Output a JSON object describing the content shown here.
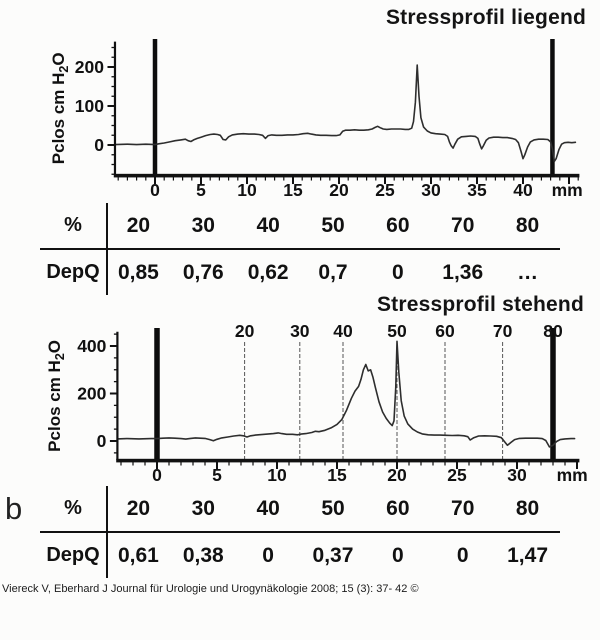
{
  "panel_label": "b",
  "citation": "Viereck V, Eberhard J Journal für Urologie und Urogynäkologie 2008; 15 (3): 37- 42 ©",
  "colors": {
    "ink": "#111111",
    "trace": "#2e2e2e",
    "marker_bar": "#0d0d0d",
    "gridline": "#555555"
  },
  "chart_data": [
    {
      "id": "liegend",
      "type": "line",
      "title": "Stressprofil liegend",
      "ylabel": "Pclos cm H2O",
      "ylabel_rich": {
        "pre": "Pclos cm H",
        "sub": "2",
        "post": "O"
      },
      "x_unit": "mm",
      "xlim": [
        -4.35,
        46
      ],
      "ylim": [
        -77,
        265
      ],
      "x_ticks": [
        0,
        5,
        10,
        15,
        20,
        25,
        30,
        35,
        40
      ],
      "x_minor_step": 1,
      "y_ticks": [
        0,
        100,
        200
      ],
      "y_minor_step": 25,
      "unit_label_mm": 44.8,
      "marker_bars_mm": [
        0,
        43.2
      ],
      "grid": false,
      "points": [
        [
          -4.35,
          1
        ],
        [
          -3,
          2
        ],
        [
          -2,
          1
        ],
        [
          -1,
          2
        ],
        [
          0,
          1
        ],
        [
          0.4,
          3
        ],
        [
          1,
          5
        ],
        [
          1.6,
          8
        ],
        [
          2.2,
          11
        ],
        [
          2.8,
          13
        ],
        [
          3.3,
          15
        ],
        [
          3.6,
          11
        ],
        [
          3.9,
          9
        ],
        [
          4.2,
          13
        ],
        [
          4.6,
          17
        ],
        [
          5,
          20
        ],
        [
          5.5,
          24
        ],
        [
          6,
          27
        ],
        [
          6.4,
          28
        ],
        [
          6.8,
          27
        ],
        [
          7.1,
          25
        ],
        [
          7.4,
          14
        ],
        [
          7.7,
          13
        ],
        [
          8,
          21
        ],
        [
          8.4,
          26
        ],
        [
          9,
          28
        ],
        [
          9.6,
          29
        ],
        [
          10.2,
          28
        ],
        [
          10.8,
          28
        ],
        [
          11.3,
          27
        ],
        [
          11.7,
          25
        ],
        [
          12,
          17
        ],
        [
          12.3,
          24
        ],
        [
          12.7,
          26
        ],
        [
          13.2,
          25
        ],
        [
          13.8,
          25
        ],
        [
          14.4,
          26
        ],
        [
          15,
          26
        ],
        [
          15.6,
          27
        ],
        [
          16.1,
          29
        ],
        [
          16.6,
          30
        ],
        [
          17,
          28
        ],
        [
          17.5,
          26
        ],
        [
          18,
          25
        ],
        [
          18.6,
          25
        ],
        [
          19.2,
          24
        ],
        [
          19.7,
          24
        ],
        [
          20.1,
          26
        ],
        [
          20.4,
          35
        ],
        [
          20.7,
          38
        ],
        [
          21.2,
          38
        ],
        [
          21.7,
          39
        ],
        [
          22.2,
          38
        ],
        [
          22.7,
          38
        ],
        [
          23.2,
          39
        ],
        [
          23.6,
          41
        ],
        [
          23.9,
          45
        ],
        [
          24.2,
          48
        ],
        [
          24.5,
          44
        ],
        [
          24.8,
          41
        ],
        [
          25.2,
          40
        ],
        [
          25.7,
          41
        ],
        [
          26.2,
          41
        ],
        [
          26.7,
          41
        ],
        [
          27.2,
          40
        ],
        [
          27.6,
          40
        ],
        [
          27.9,
          43
        ],
        [
          28.1,
          60
        ],
        [
          28.3,
          110
        ],
        [
          28.5,
          205
        ],
        [
          28.7,
          125
        ],
        [
          28.9,
          70
        ],
        [
          29.2,
          46
        ],
        [
          29.6,
          36
        ],
        [
          30,
          31
        ],
        [
          30.5,
          29
        ],
        [
          31,
          28
        ],
        [
          31.5,
          27
        ],
        [
          31.8,
          22
        ],
        [
          32,
          8
        ],
        [
          32.2,
          -2
        ],
        [
          32.4,
          -8
        ],
        [
          32.6,
          2
        ],
        [
          32.9,
          15
        ],
        [
          33.3,
          21
        ],
        [
          33.8,
          22
        ],
        [
          34.3,
          23
        ],
        [
          34.8,
          22
        ],
        [
          35.1,
          17
        ],
        [
          35.3,
          2
        ],
        [
          35.5,
          -10
        ],
        [
          35.7,
          -2
        ],
        [
          36,
          12
        ],
        [
          36.3,
          18
        ],
        [
          36.8,
          20
        ],
        [
          37.3,
          20
        ],
        [
          37.8,
          19
        ],
        [
          38.3,
          19
        ],
        [
          38.8,
          17
        ],
        [
          39.2,
          14
        ],
        [
          39.5,
          6
        ],
        [
          39.8,
          -18
        ],
        [
          40,
          -35
        ],
        [
          40.2,
          -25
        ],
        [
          40.5,
          -5
        ],
        [
          40.8,
          8
        ],
        [
          41.2,
          13
        ],
        [
          41.7,
          15
        ],
        [
          42.2,
          15
        ],
        [
          42.7,
          14
        ],
        [
          43,
          8
        ],
        [
          43.2,
          -10
        ],
        [
          43.4,
          -42
        ],
        [
          43.6,
          -35
        ],
        [
          43.9,
          -12
        ],
        [
          44.2,
          2
        ],
        [
          44.5,
          6
        ],
        [
          44.9,
          7
        ],
        [
          45.3,
          6
        ],
        [
          45.7,
          7
        ]
      ]
    },
    {
      "id": "depq-liegend",
      "type": "table",
      "row_labels": [
        "%",
        "DepQ"
      ],
      "columns": [
        "20",
        "30",
        "40",
        "50",
        "60",
        "70",
        "80"
      ],
      "depq_values": [
        "0,85",
        "0,76",
        "0,62",
        "0,7",
        "0",
        "1,36",
        "…"
      ]
    },
    {
      "id": "stehend",
      "type": "line",
      "title": "Stressprofil stehend",
      "ylabel": "Pclos cm H2O",
      "ylabel_rich": {
        "pre": "Pclos cm H",
        "sub": "2",
        "post": "O"
      },
      "x_unit": "mm",
      "xlim": [
        -3.3,
        35.1
      ],
      "ylim": [
        -80,
        460
      ],
      "x_ticks": [
        0,
        5,
        10,
        15,
        20,
        25,
        30
      ],
      "x_minor_step": 1,
      "y_ticks": [
        0,
        200,
        400
      ],
      "y_minor_step": 50,
      "unit_label_mm": 34.6,
      "marker_bars_mm": [
        0,
        33.0
      ],
      "grid": true,
      "percent_gridlines": [
        {
          "label": "20",
          "mm": 7.3
        },
        {
          "label": "30",
          "mm": 11.9
        },
        {
          "label": "40",
          "mm": 15.5
        },
        {
          "label": "50",
          "mm": 20.0
        },
        {
          "label": "60",
          "mm": 24.0
        },
        {
          "label": "70",
          "mm": 28.8
        },
        {
          "label": "80",
          "mm": 33.0
        }
      ],
      "points": [
        [
          -3.3,
          9
        ],
        [
          -2.5,
          10
        ],
        [
          -1.5,
          9
        ],
        [
          -0.5,
          10
        ],
        [
          0,
          10
        ],
        [
          0.5,
          12
        ],
        [
          1,
          13
        ],
        [
          1.5,
          12
        ],
        [
          2,
          10
        ],
        [
          2.4,
          8
        ],
        [
          2.8,
          11
        ],
        [
          3.2,
          13
        ],
        [
          3.6,
          12
        ],
        [
          4,
          11
        ],
        [
          4.4,
          6
        ],
        [
          4.7,
          1
        ],
        [
          5,
          7
        ],
        [
          5.4,
          13
        ],
        [
          5.9,
          17
        ],
        [
          6.4,
          21
        ],
        [
          6.9,
          24
        ],
        [
          7.2,
          22
        ],
        [
          7.5,
          17
        ],
        [
          7.8,
          22
        ],
        [
          8.2,
          25
        ],
        [
          8.7,
          27
        ],
        [
          9.2,
          29
        ],
        [
          9.7,
          31
        ],
        [
          10.1,
          34
        ],
        [
          10.4,
          31
        ],
        [
          10.8,
          28
        ],
        [
          11.3,
          28
        ],
        [
          11.7,
          26
        ],
        [
          12,
          29
        ],
        [
          12.4,
          31
        ],
        [
          12.9,
          36
        ],
        [
          13.2,
          41
        ],
        [
          13.5,
          39
        ],
        [
          14,
          45
        ],
        [
          14.5,
          55
        ],
        [
          15,
          70
        ],
        [
          15.4,
          90
        ],
        [
          15.8,
          130
        ],
        [
          16.2,
          180
        ],
        [
          16.5,
          210
        ],
        [
          16.8,
          230
        ],
        [
          17,
          260
        ],
        [
          17.2,
          300
        ],
        [
          17.4,
          322
        ],
        [
          17.6,
          295
        ],
        [
          17.8,
          300
        ],
        [
          18,
          268
        ],
        [
          18.2,
          225
        ],
        [
          18.5,
          165
        ],
        [
          18.8,
          122
        ],
        [
          19.1,
          95
        ],
        [
          19.4,
          75
        ],
        [
          19.6,
          65
        ],
        [
          19.75,
          85
        ],
        [
          19.9,
          230
        ],
        [
          20.0,
          420
        ],
        [
          20.15,
          290
        ],
        [
          20.35,
          170
        ],
        [
          20.6,
          105
        ],
        [
          20.9,
          72
        ],
        [
          21.3,
          50
        ],
        [
          21.7,
          38
        ],
        [
          22.1,
          30
        ],
        [
          22.6,
          26
        ],
        [
          23.1,
          25
        ],
        [
          23.6,
          25
        ],
        [
          24.1,
          24
        ],
        [
          24.6,
          23
        ],
        [
          25.1,
          24
        ],
        [
          25.6,
          22
        ],
        [
          25.9,
          18
        ],
        [
          26.1,
          4
        ],
        [
          26.4,
          14
        ],
        [
          26.8,
          21
        ],
        [
          27.3,
          22
        ],
        [
          27.8,
          21
        ],
        [
          28.3,
          20
        ],
        [
          28.7,
          14
        ],
        [
          29,
          -5
        ],
        [
          29.2,
          -18
        ],
        [
          29.5,
          -6
        ],
        [
          29.8,
          6
        ],
        [
          30.2,
          11
        ],
        [
          30.7,
          12
        ],
        [
          31.2,
          12
        ],
        [
          31.7,
          12
        ],
        [
          32.1,
          10
        ],
        [
          32.4,
          2
        ],
        [
          32.7,
          -25
        ],
        [
          33,
          -18
        ],
        [
          33.3,
          -2
        ],
        [
          33.6,
          6
        ],
        [
          34,
          9
        ],
        [
          34.5,
          10
        ],
        [
          34.8,
          10
        ]
      ]
    },
    {
      "id": "depq-stehend",
      "type": "table",
      "row_labels": [
        "%",
        "DepQ"
      ],
      "columns": [
        "20",
        "30",
        "40",
        "50",
        "60",
        "70",
        "80"
      ],
      "depq_values": [
        "0,61",
        "0,38",
        "0",
        "0,37",
        "0",
        "0",
        "1,47"
      ]
    }
  ]
}
